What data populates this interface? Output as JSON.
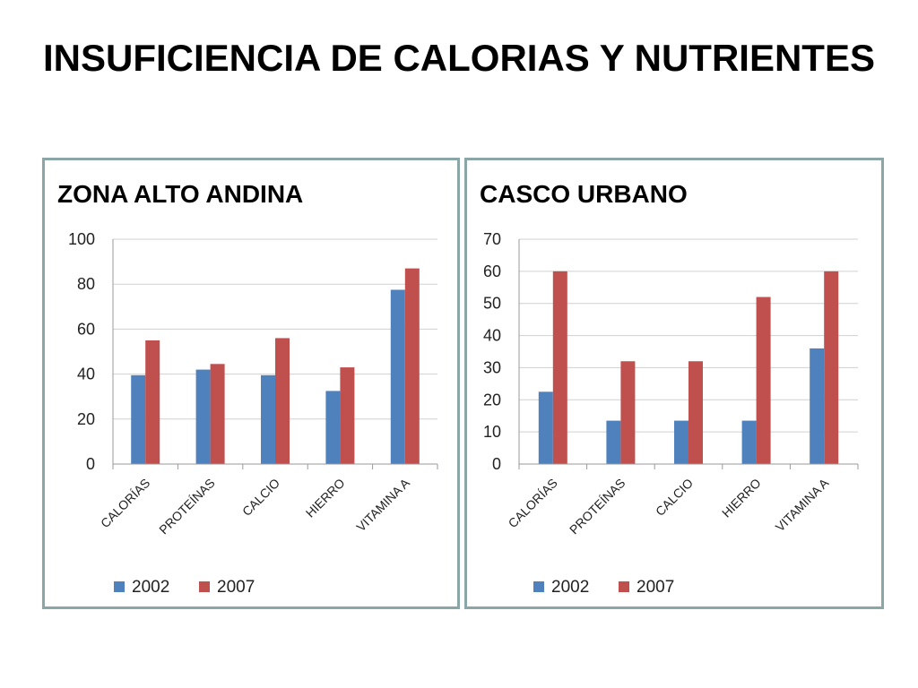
{
  "title": "INSUFICIENCIA DE CALORIAS Y NUTRIENTES",
  "colors": {
    "series_2002": "#4f81bd",
    "series_2007": "#c0504d",
    "border": "#8aa6a6",
    "grid": "#d0d0d0"
  },
  "chart_data": [
    {
      "type": "bar",
      "title": "ZONA ALTO ANDINA",
      "categories": [
        "CALORÍAS",
        "PROTEÍNAS",
        "CALCIO",
        "HIERRO",
        "VITAMINA A"
      ],
      "series": [
        {
          "name": "2002",
          "values": [
            39.5,
            42,
            39.5,
            32.5,
            77.5
          ]
        },
        {
          "name": "2007",
          "values": [
            55,
            44.5,
            56,
            43,
            87
          ]
        }
      ],
      "ylim": [
        0,
        100
      ],
      "yticks": [
        0,
        20,
        40,
        60,
        80,
        100
      ],
      "grid": true,
      "legend": "bottom"
    },
    {
      "type": "bar",
      "title": "CASCO URBANO",
      "categories": [
        "CALORÍAS",
        "PROTEÍNAS",
        "CALCIO",
        "HIERRO",
        "VITAMINA A"
      ],
      "series": [
        {
          "name": "2002",
          "values": [
            22.5,
            13.5,
            13.5,
            13.5,
            36
          ]
        },
        {
          "name": "2007",
          "values": [
            60,
            32,
            32,
            52,
            60
          ]
        }
      ],
      "ylim": [
        0,
        70
      ],
      "yticks": [
        0,
        10,
        20,
        30,
        40,
        50,
        60,
        70
      ],
      "grid": true,
      "legend": "bottom"
    }
  ]
}
